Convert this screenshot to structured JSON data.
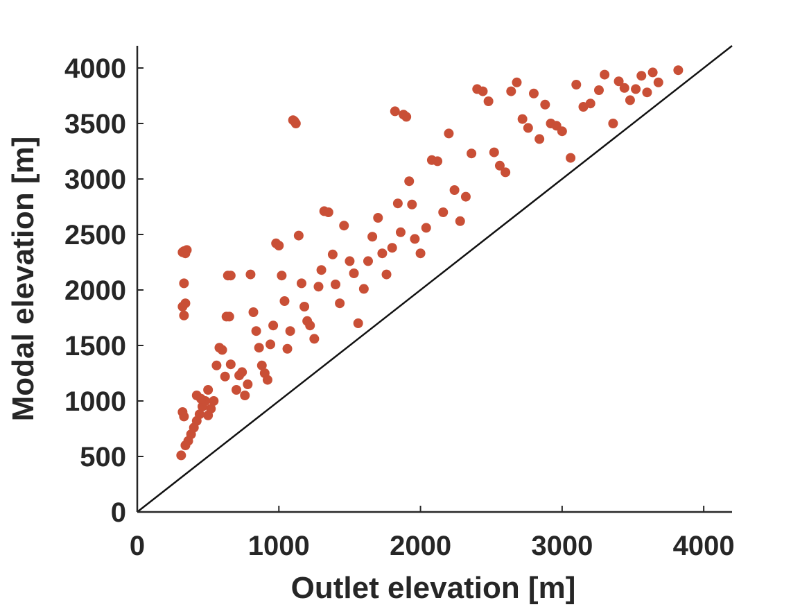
{
  "chart_data": {
    "type": "scatter",
    "xlabel": "Outlet elevation [m]",
    "ylabel": "Modal elevation [m]",
    "xlim": [
      0,
      4200
    ],
    "ylim": [
      0,
      4200
    ],
    "xticks": [
      "0",
      "1000",
      "2000",
      "3000",
      "4000"
    ],
    "yticks": [
      "0",
      "500",
      "1000",
      "1500",
      "2000",
      "2500",
      "3000",
      "3500",
      "4000"
    ],
    "grid": false,
    "reference_line": "y = x",
    "marker_color": "#c94f36",
    "series": [
      {
        "points": [
          [
            330,
            2350
          ],
          [
            340,
            2330
          ],
          [
            350,
            2360
          ],
          [
            320,
            2340
          ],
          [
            330,
            2060
          ],
          [
            340,
            1880
          ],
          [
            320,
            1850
          ],
          [
            330,
            1770
          ],
          [
            320,
            900
          ],
          [
            330,
            860
          ],
          [
            310,
            510
          ],
          [
            340,
            600
          ],
          [
            360,
            640
          ],
          [
            380,
            700
          ],
          [
            400,
            760
          ],
          [
            420,
            820
          ],
          [
            440,
            880
          ],
          [
            460,
            950
          ],
          [
            480,
            1000
          ],
          [
            500,
            870
          ],
          [
            420,
            1050
          ],
          [
            450,
            1020
          ],
          [
            500,
            1100
          ],
          [
            520,
            930
          ],
          [
            540,
            1000
          ],
          [
            560,
            1320
          ],
          [
            580,
            1480
          ],
          [
            600,
            1460
          ],
          [
            620,
            1220
          ],
          [
            640,
            2130
          ],
          [
            660,
            2130
          ],
          [
            630,
            1760
          ],
          [
            650,
            1760
          ],
          [
            660,
            1330
          ],
          [
            700,
            1100
          ],
          [
            720,
            1230
          ],
          [
            740,
            1260
          ],
          [
            760,
            1050
          ],
          [
            780,
            1150
          ],
          [
            800,
            2140
          ],
          [
            820,
            1800
          ],
          [
            840,
            1630
          ],
          [
            860,
            1480
          ],
          [
            880,
            1320
          ],
          [
            900,
            1250
          ],
          [
            920,
            1190
          ],
          [
            940,
            1510
          ],
          [
            960,
            1680
          ],
          [
            980,
            2420
          ],
          [
            1000,
            2400
          ],
          [
            1020,
            2130
          ],
          [
            1040,
            1900
          ],
          [
            1060,
            1470
          ],
          [
            1080,
            1630
          ],
          [
            1100,
            3530
          ],
          [
            1120,
            3500
          ],
          [
            1110,
            3520
          ],
          [
            1140,
            2490
          ],
          [
            1160,
            2060
          ],
          [
            1180,
            1850
          ],
          [
            1200,
            1720
          ],
          [
            1220,
            1680
          ],
          [
            1250,
            1560
          ],
          [
            1280,
            2030
          ],
          [
            1300,
            2180
          ],
          [
            1320,
            2710
          ],
          [
            1350,
            2700
          ],
          [
            1380,
            2320
          ],
          [
            1400,
            2050
          ],
          [
            1430,
            1880
          ],
          [
            1460,
            2580
          ],
          [
            1500,
            2260
          ],
          [
            1530,
            2150
          ],
          [
            1560,
            1700
          ],
          [
            1600,
            2010
          ],
          [
            1630,
            2260
          ],
          [
            1660,
            2480
          ],
          [
            1700,
            2650
          ],
          [
            1730,
            2330
          ],
          [
            1760,
            2140
          ],
          [
            1800,
            2380
          ],
          [
            1820,
            3610
          ],
          [
            1840,
            2780
          ],
          [
            1860,
            2520
          ],
          [
            1880,
            3580
          ],
          [
            1900,
            3560
          ],
          [
            1920,
            2980
          ],
          [
            1940,
            2770
          ],
          [
            1960,
            2460
          ],
          [
            2000,
            2330
          ],
          [
            2040,
            2560
          ],
          [
            2080,
            3170
          ],
          [
            2120,
            3160
          ],
          [
            2160,
            2700
          ],
          [
            2200,
            3410
          ],
          [
            2240,
            2900
          ],
          [
            2280,
            2620
          ],
          [
            2320,
            2840
          ],
          [
            2360,
            3230
          ],
          [
            2400,
            3810
          ],
          [
            2440,
            3790
          ],
          [
            2480,
            3700
          ],
          [
            2520,
            3240
          ],
          [
            2560,
            3120
          ],
          [
            2600,
            3060
          ],
          [
            2640,
            3790
          ],
          [
            2680,
            3870
          ],
          [
            2720,
            3540
          ],
          [
            2760,
            3460
          ],
          [
            2800,
            3770
          ],
          [
            2840,
            3360
          ],
          [
            2880,
            3670
          ],
          [
            2920,
            3500
          ],
          [
            2960,
            3480
          ],
          [
            3000,
            3430
          ],
          [
            3060,
            3190
          ],
          [
            3100,
            3850
          ],
          [
            3150,
            3650
          ],
          [
            3200,
            3680
          ],
          [
            3260,
            3800
          ],
          [
            3300,
            3940
          ],
          [
            3360,
            3500
          ],
          [
            3400,
            3880
          ],
          [
            3440,
            3820
          ],
          [
            3480,
            3710
          ],
          [
            3520,
            3810
          ],
          [
            3560,
            3930
          ],
          [
            3600,
            3780
          ],
          [
            3640,
            3960
          ],
          [
            3680,
            3870
          ],
          [
            3820,
            3980
          ]
        ]
      }
    ]
  }
}
